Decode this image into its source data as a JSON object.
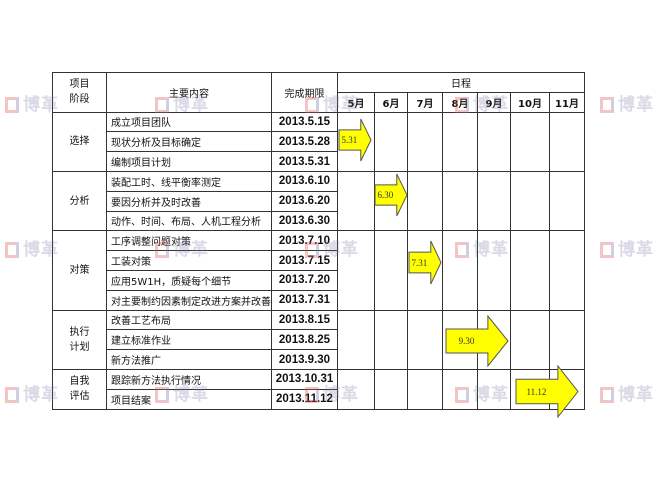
{
  "header": {
    "stage": "项目阶段",
    "content": "主要内容",
    "deadline": "完成期限",
    "schedule": "日程",
    "months": [
      "5月",
      "6月",
      "7月",
      "8月",
      "9月",
      "10月",
      "11月"
    ]
  },
  "stages": [
    {
      "name": "选择",
      "tasks": [
        {
          "content": "成立项目团队",
          "date": "2013.5.15"
        },
        {
          "content": "现状分析及目标确定",
          "date": "2013.5.28"
        },
        {
          "content": "编制项目计划",
          "date": "2013.5.31"
        }
      ]
    },
    {
      "name": "分析",
      "tasks": [
        {
          "content": "装配工时、线平衡率测定",
          "date": "2013.6.10"
        },
        {
          "content": "要因分析并及时改善",
          "date": "2013.6.20"
        },
        {
          "content": "动作、时间、布局、人机工程分析",
          "date": "2013.6.30"
        }
      ]
    },
    {
      "name": "对策",
      "tasks": [
        {
          "content": "工序调整问题对策",
          "date": "2013.7.10"
        },
        {
          "content": "工装对策",
          "date": "2013.7.15"
        },
        {
          "content": "应用5W1H，质疑每个细节",
          "date": "2013.7.20"
        },
        {
          "content": "对主要制约因素制定改进方案并改善",
          "date": "2013.7.31"
        }
      ]
    },
    {
      "name": "执行计划",
      "tasks": [
        {
          "content": "改善工艺布局",
          "date": "2013.8.15"
        },
        {
          "content": "建立标准作业",
          "date": "2013.8.25"
        },
        {
          "content": "新方法推广",
          "date": "2013.9.30"
        }
      ]
    },
    {
      "name": "自我评估",
      "tasks": [
        {
          "content": "跟踪新方法执行情况",
          "date": "2013.10.31"
        },
        {
          "content": "项目结案",
          "date": "2013.11.12"
        }
      ]
    }
  ],
  "milestones": [
    {
      "label": "5.31",
      "month": "5月"
    },
    {
      "label": "6.30",
      "month": "6月"
    },
    {
      "label": "7.31",
      "month": "7月"
    },
    {
      "label": "9.30",
      "month": "8月-9月"
    },
    {
      "label": "11.12",
      "month": "10月-11月"
    }
  ],
  "watermark": "博革",
  "colors": {
    "arrow_fill": "#ffff00",
    "arrow_stroke": "#555555",
    "border": "#333333"
  }
}
